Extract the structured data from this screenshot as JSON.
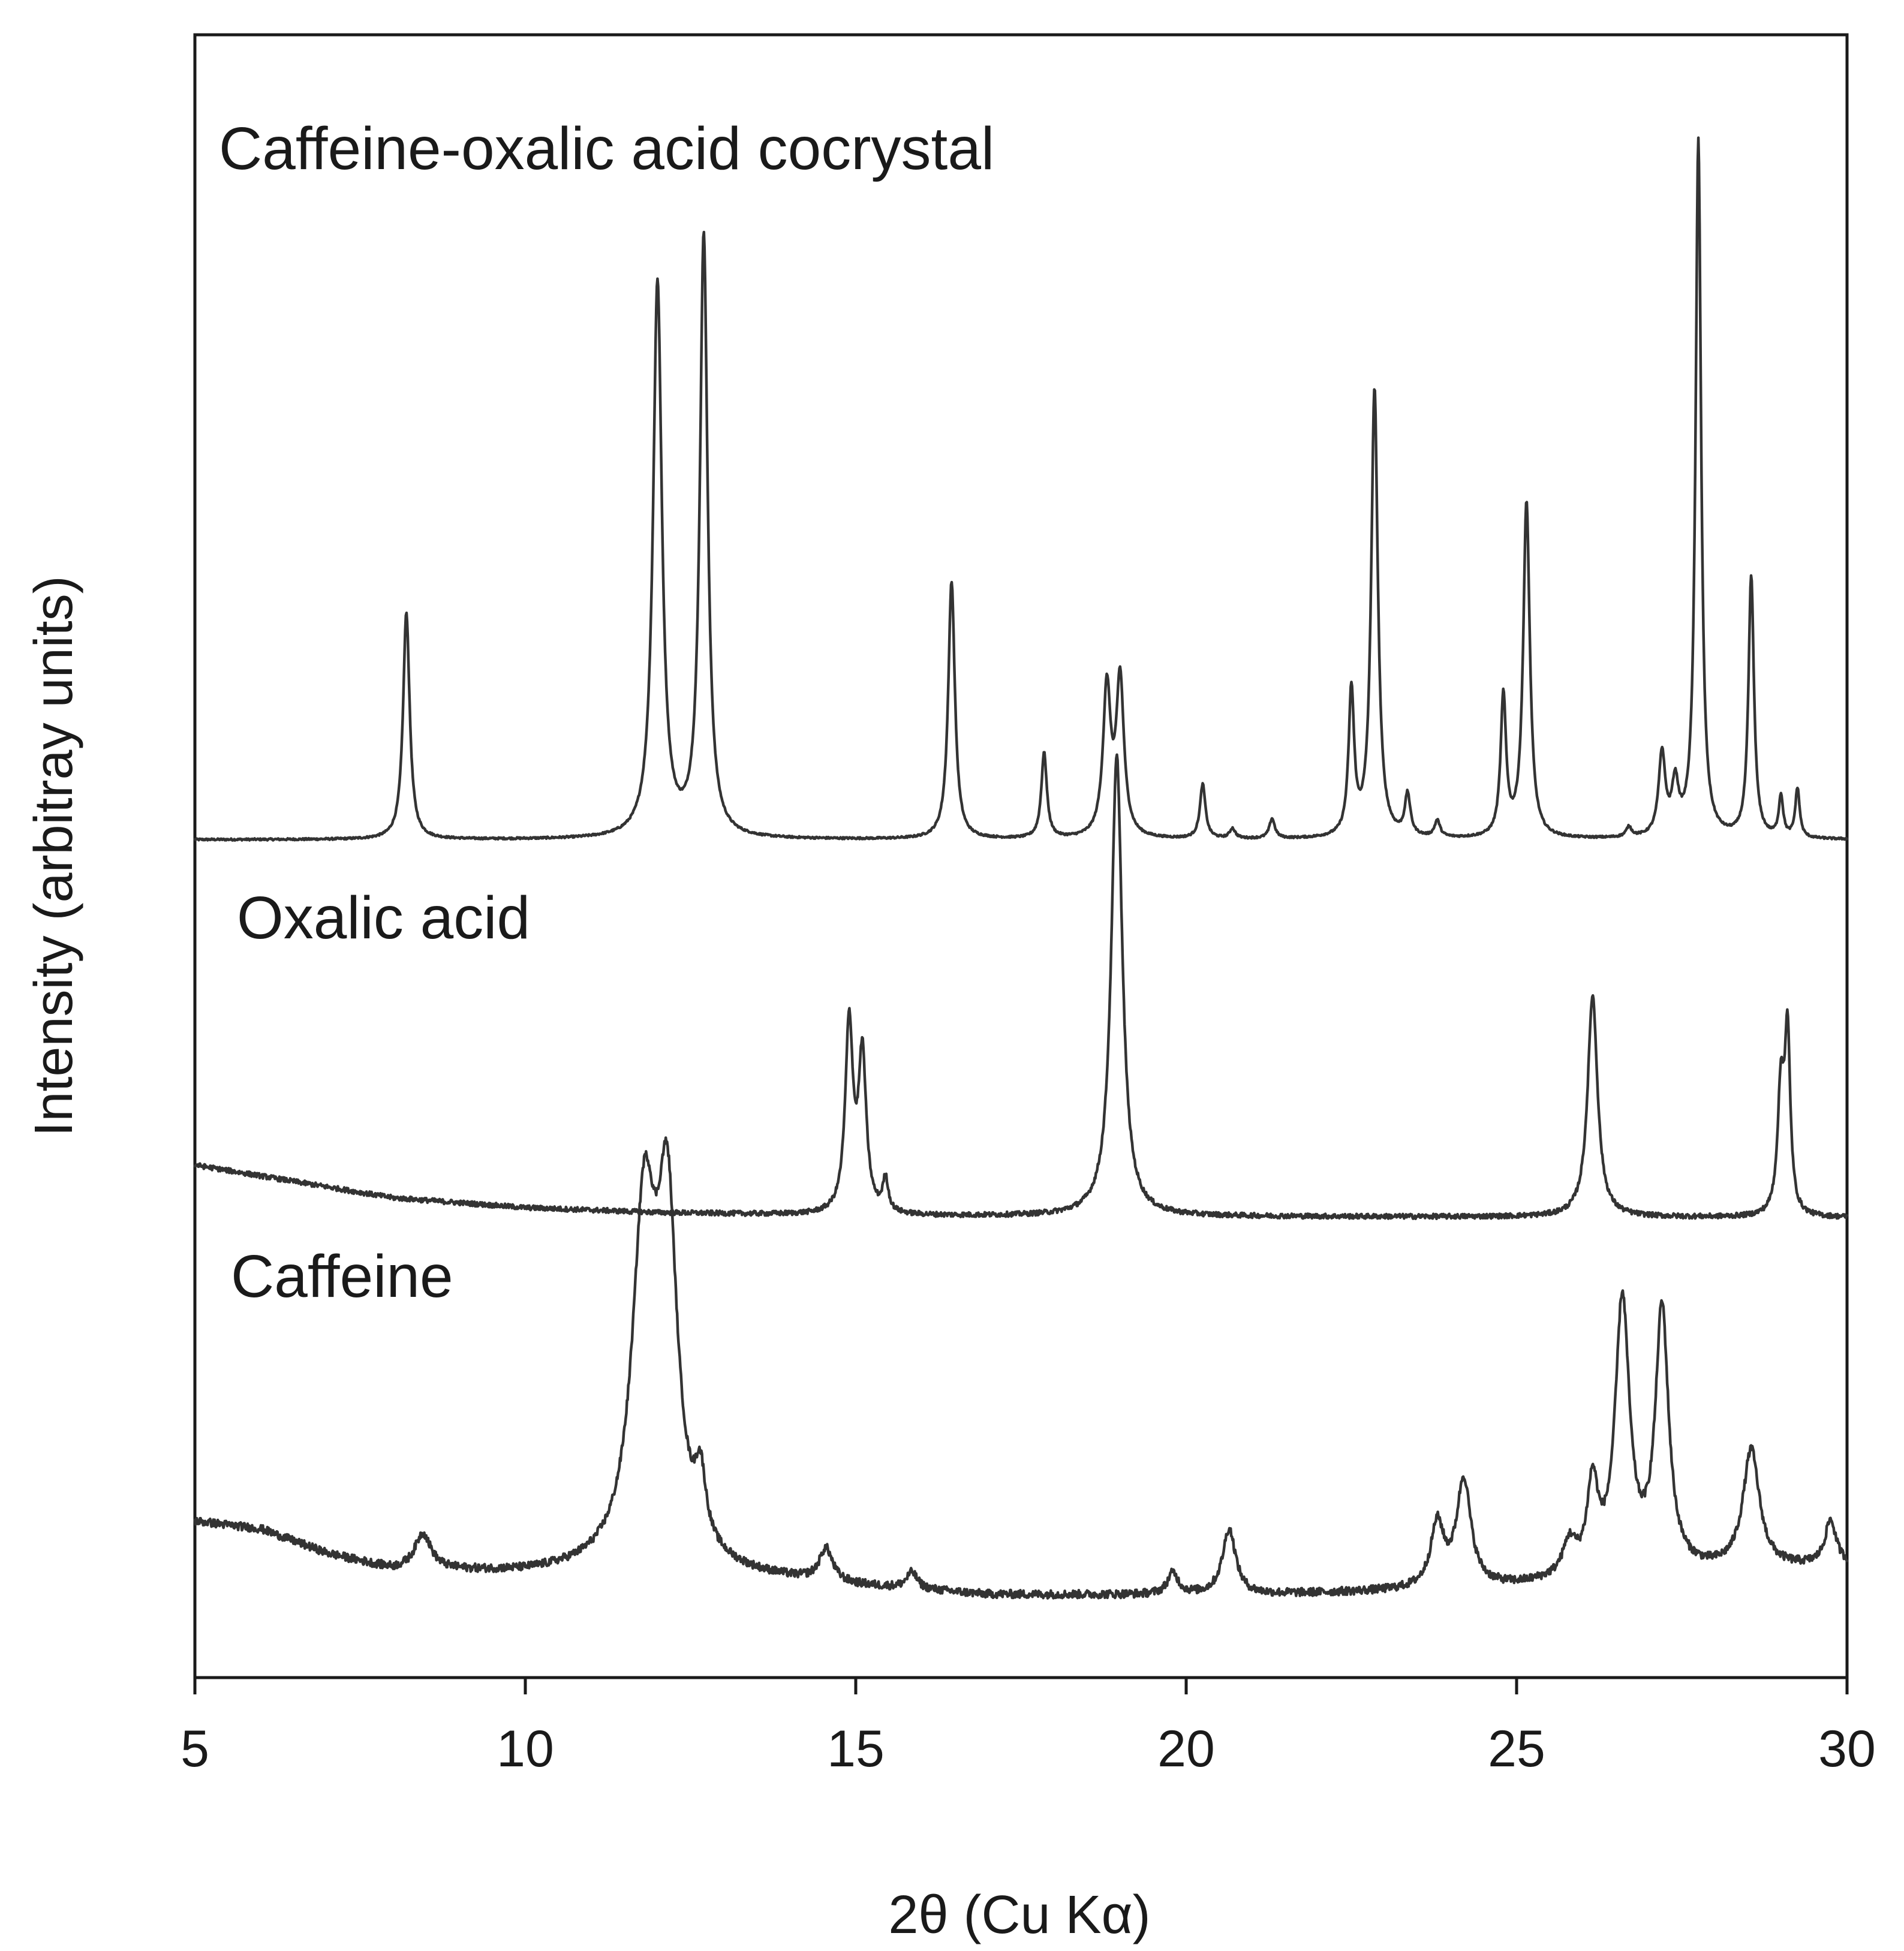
{
  "chart_data": {
    "type": "line",
    "title": "",
    "xlabel": "2θ (Cu Kα)",
    "ylabel": "Intensity (arbitray units)",
    "xlim": [
      5,
      30
    ],
    "x_ticks": [
      5,
      10,
      15,
      20,
      25,
      30
    ],
    "x_tick_labels": [
      "5",
      "10",
      "15",
      "20",
      "25",
      "30"
    ],
    "y_ticks_shown": false,
    "grid": false,
    "stroke_color": "#333333",
    "series": [
      {
        "name": "Caffeine-oxalic acid cocrystal",
        "baseline": 0.51,
        "background": [
          [
            5,
            0.0
          ],
          [
            30,
            0.0
          ]
        ],
        "peaks": [
          {
            "x": 8.2,
            "height": 0.138,
            "width": 0.06
          },
          {
            "x": 12.0,
            "height": 0.338,
            "width": 0.08
          },
          {
            "x": 12.7,
            "height": 0.366,
            "width": 0.07
          },
          {
            "x": 16.45,
            "height": 0.157,
            "width": 0.06
          },
          {
            "x": 17.85,
            "height": 0.052,
            "width": 0.05
          },
          {
            "x": 18.8,
            "height": 0.09,
            "width": 0.07
          },
          {
            "x": 19.0,
            "height": 0.095,
            "width": 0.07
          },
          {
            "x": 20.25,
            "height": 0.033,
            "width": 0.05
          },
          {
            "x": 20.7,
            "height": 0.006,
            "width": 0.05
          },
          {
            "x": 21.3,
            "height": 0.012,
            "width": 0.05
          },
          {
            "x": 22.5,
            "height": 0.088,
            "width": 0.05
          },
          {
            "x": 22.85,
            "height": 0.273,
            "width": 0.06
          },
          {
            "x": 23.35,
            "height": 0.025,
            "width": 0.05
          },
          {
            "x": 23.8,
            "height": 0.01,
            "width": 0.05
          },
          {
            "x": 24.8,
            "height": 0.085,
            "width": 0.05
          },
          {
            "x": 25.15,
            "height": 0.204,
            "width": 0.06
          },
          {
            "x": 26.7,
            "height": 0.006,
            "width": 0.05
          },
          {
            "x": 27.2,
            "height": 0.05,
            "width": 0.06
          },
          {
            "x": 27.4,
            "height": 0.03,
            "width": 0.06
          },
          {
            "x": 27.75,
            "height": 0.425,
            "width": 0.05
          },
          {
            "x": 28.55,
            "height": 0.159,
            "width": 0.05
          },
          {
            "x": 29.0,
            "height": 0.025,
            "width": 0.04
          },
          {
            "x": 29.25,
            "height": 0.03,
            "width": 0.04
          }
        ]
      },
      {
        "name": "Oxalic acid",
        "baseline": 0.28,
        "background": [
          [
            5,
            0.032
          ],
          [
            6.5,
            0.022
          ],
          [
            8,
            0.012
          ],
          [
            10,
            0.006
          ],
          [
            12,
            0.003
          ],
          [
            15,
            0.001
          ],
          [
            30,
            0.0
          ]
        ],
        "peaks": [
          {
            "x": 14.9,
            "height": 0.115,
            "width": 0.07
          },
          {
            "x": 15.1,
            "height": 0.095,
            "width": 0.07
          },
          {
            "x": 15.45,
            "height": 0.02,
            "width": 0.05
          },
          {
            "x": 18.95,
            "height": 0.28,
            "width": 0.1
          },
          {
            "x": 26.15,
            "height": 0.135,
            "width": 0.09
          },
          {
            "x": 29.0,
            "height": 0.075,
            "width": 0.06
          },
          {
            "x": 29.1,
            "height": 0.105,
            "width": 0.05
          }
        ]
      },
      {
        "name": "Caffeine",
        "baseline": 0.05,
        "background": [
          [
            5,
            0.045
          ],
          [
            6,
            0.04
          ],
          [
            7,
            0.025
          ],
          [
            8,
            0.015
          ],
          [
            9,
            0.014
          ],
          [
            10,
            0.013
          ],
          [
            11,
            0.014
          ],
          [
            13,
            0.012
          ],
          [
            15,
            0.005
          ],
          [
            17,
            0.0
          ],
          [
            19,
            0.0
          ],
          [
            21,
            0.0
          ],
          [
            23,
            0.002
          ],
          [
            25,
            0.005
          ],
          [
            27,
            0.012
          ],
          [
            30,
            0.018
          ]
        ],
        "peaks": [
          {
            "x": 8.45,
            "height": 0.022,
            "width": 0.15
          },
          {
            "x": 11.8,
            "height": 0.21,
            "width": 0.22
          },
          {
            "x": 12.15,
            "height": 0.2,
            "width": 0.18
          },
          {
            "x": 12.65,
            "height": 0.04,
            "width": 0.1
          },
          {
            "x": 14.55,
            "height": 0.02,
            "width": 0.12
          },
          {
            "x": 15.85,
            "height": 0.01,
            "width": 0.1
          },
          {
            "x": 19.8,
            "height": 0.013,
            "width": 0.1
          },
          {
            "x": 20.65,
            "height": 0.04,
            "width": 0.12
          },
          {
            "x": 23.8,
            "height": 0.038,
            "width": 0.12
          },
          {
            "x": 24.2,
            "height": 0.065,
            "width": 0.13
          },
          {
            "x": 25.8,
            "height": 0.02,
            "width": 0.12
          },
          {
            "x": 26.15,
            "height": 0.053,
            "width": 0.1
          },
          {
            "x": 26.6,
            "height": 0.165,
            "width": 0.13
          },
          {
            "x": 27.2,
            "height": 0.158,
            "width": 0.12
          },
          {
            "x": 28.55,
            "height": 0.072,
            "width": 0.15
          },
          {
            "x": 29.75,
            "height": 0.027,
            "width": 0.1
          }
        ]
      }
    ]
  }
}
